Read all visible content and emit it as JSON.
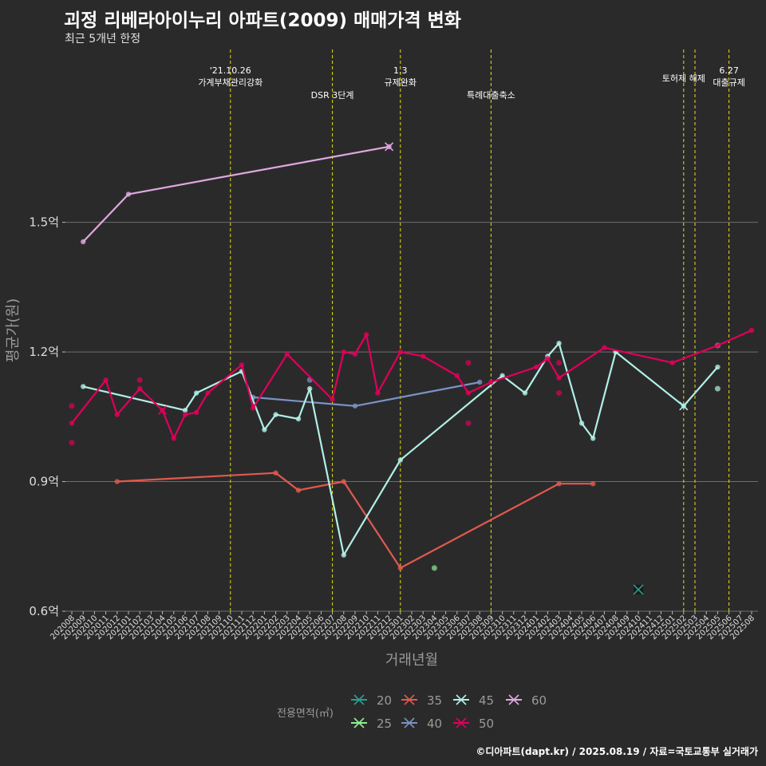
{
  "title": "괴정 리베라아이누리 아파트(2009) 매매가격 변화",
  "subtitle": "최근 5개년 한정",
  "caption": "©디아파트(dapt.kr) / 2025.08.19 / 자료=국토교통부 실거래가",
  "colors": {
    "background": "#2b2a2b",
    "grid": "#6e6e6e",
    "event_line": "#e0e010",
    "s20": "#2a9d8f",
    "s25": "#90ee90",
    "s35": "#e05a4e",
    "s40": "#7b93c4",
    "s45": "#b0f0e6",
    "s50": "#e0005a",
    "s60": "#e0a8e0"
  },
  "chart_data": {
    "type": "line",
    "title": "괴정 리베라아이누리 아파트(2009) 매매가격 변화",
    "xlabel": "거래년월",
    "ylabel": "평균가(원)",
    "ylim": [
      0.6,
      1.9
    ],
    "yticks": [
      0.6,
      0.9,
      1.2,
      1.5
    ],
    "ytick_labels": [
      "0.6억",
      "0.9억",
      "1.2억",
      "1.5억"
    ],
    "categories": [
      "202008",
      "202009",
      "202010",
      "202011",
      "202012",
      "202101",
      "202102",
      "202103",
      "202104",
      "202105",
      "202106",
      "202107",
      "202108",
      "202109",
      "202110",
      "202111",
      "202112",
      "202201",
      "202202",
      "202203",
      "202204",
      "202205",
      "202206",
      "202207",
      "202208",
      "202209",
      "202210",
      "202211",
      "202212",
      "202301",
      "202302",
      "202303",
      "202304",
      "202305",
      "202306",
      "202307",
      "202308",
      "202309",
      "202310",
      "202311",
      "202312",
      "202401",
      "202402",
      "202403",
      "202404",
      "202405",
      "202406",
      "202407",
      "202408",
      "202409",
      "202410",
      "202411",
      "202412",
      "202501",
      "202502",
      "202503",
      "202504",
      "202505",
      "202506",
      "202507",
      "202508"
    ],
    "legend_title": "전용면적(㎡)",
    "events": [
      {
        "month": "202110",
        "label": "'21.10.26\n가계부채관리강화"
      },
      {
        "month": "202207",
        "label": "DSR 3단계"
      },
      {
        "month": "202301",
        "label": "1.3\n규제완화"
      },
      {
        "month": "202309",
        "label": "특례대출축소"
      },
      {
        "month": "202502",
        "label": "토허제 해제"
      },
      {
        "month": "202503",
        "label": ""
      },
      {
        "month": "202506",
        "label": "6.27\n대출규제"
      }
    ],
    "series": [
      {
        "name": "20",
        "key": "s20",
        "line": [],
        "points": [
          [
            "202410",
            0.65
          ]
        ]
      },
      {
        "name": "25",
        "key": "s25",
        "line": [],
        "points": [
          [
            "202304",
            0.7
          ]
        ]
      },
      {
        "name": "35",
        "key": "s35",
        "line": [
          [
            "202012",
            0.9
          ],
          [
            "202202",
            0.92
          ],
          [
            "202204",
            0.88
          ],
          [
            "202208",
            0.9
          ],
          [
            "202301",
            0.7
          ],
          [
            "202403",
            0.895
          ],
          [
            "202406",
            0.895
          ]
        ],
        "points": []
      },
      {
        "name": "40",
        "key": "s40",
        "line": [
          [
            "202112",
            1.095
          ],
          [
            "202209",
            1.075
          ],
          [
            "202308",
            1.13
          ]
        ],
        "points": [
          [
            "202205",
            1.135
          ]
        ]
      },
      {
        "name": "45",
        "key": "s45",
        "line": [
          [
            "202009",
            1.12
          ],
          [
            "202106",
            1.065
          ],
          [
            "202107",
            1.105
          ],
          [
            "202111",
            1.155
          ],
          [
            "202201",
            1.02
          ],
          [
            "202202",
            1.055
          ],
          [
            "202204",
            1.045
          ],
          [
            "202205",
            1.115
          ],
          [
            "202208",
            0.73
          ],
          [
            "202301",
            0.95
          ],
          [
            "202310",
            1.145
          ],
          [
            "202312",
            1.105
          ],
          [
            "202402",
            1.19
          ],
          [
            "202403",
            1.22
          ],
          [
            "202405",
            1.035
          ],
          [
            "202406",
            1.0
          ],
          [
            "202408",
            1.2
          ],
          [
            "202502",
            1.075
          ],
          [
            "202505",
            1.165
          ]
        ],
        "points": [
          [
            "202505",
            1.215
          ],
          [
            "202505",
            1.115
          ]
        ]
      },
      {
        "name": "50",
        "key": "s50",
        "line": [
          [
            "202008",
            1.035
          ],
          [
            "202011",
            1.135
          ],
          [
            "202012",
            1.055
          ],
          [
            "202102",
            1.115
          ],
          [
            "202104",
            1.065
          ],
          [
            "202105",
            1.0
          ],
          [
            "202106",
            1.055
          ],
          [
            "202107",
            1.06
          ],
          [
            "202108",
            1.105
          ],
          [
            "202111",
            1.17
          ],
          [
            "202112",
            1.07
          ],
          [
            "202203",
            1.195
          ],
          [
            "202207",
            1.09
          ],
          [
            "202208",
            1.2
          ],
          [
            "202209",
            1.195
          ],
          [
            "202210",
            1.24
          ],
          [
            "202211",
            1.105
          ],
          [
            "202301",
            1.2
          ],
          [
            "202303",
            1.19
          ],
          [
            "202306",
            1.145
          ],
          [
            "202307",
            1.105
          ],
          [
            "202309",
            1.13
          ],
          [
            "202401",
            1.165
          ],
          [
            "202402",
            1.185
          ],
          [
            "202403",
            1.14
          ],
          [
            "202407",
            1.21
          ],
          [
            "202501",
            1.175
          ],
          [
            "202505",
            1.215
          ],
          [
            "202508",
            1.25
          ]
        ],
        "points": [
          [
            "202008",
            0.99
          ],
          [
            "202008",
            1.075
          ],
          [
            "202102",
            1.135
          ],
          [
            "202307",
            1.175
          ],
          [
            "202307",
            1.035
          ],
          [
            "202403",
            1.175
          ],
          [
            "202403",
            1.105
          ]
        ]
      },
      {
        "name": "60",
        "key": "s60",
        "line": [
          [
            "202009",
            1.455
          ],
          [
            "202101",
            1.565
          ],
          [
            "202212",
            1.675
          ]
        ],
        "points": []
      }
    ]
  }
}
